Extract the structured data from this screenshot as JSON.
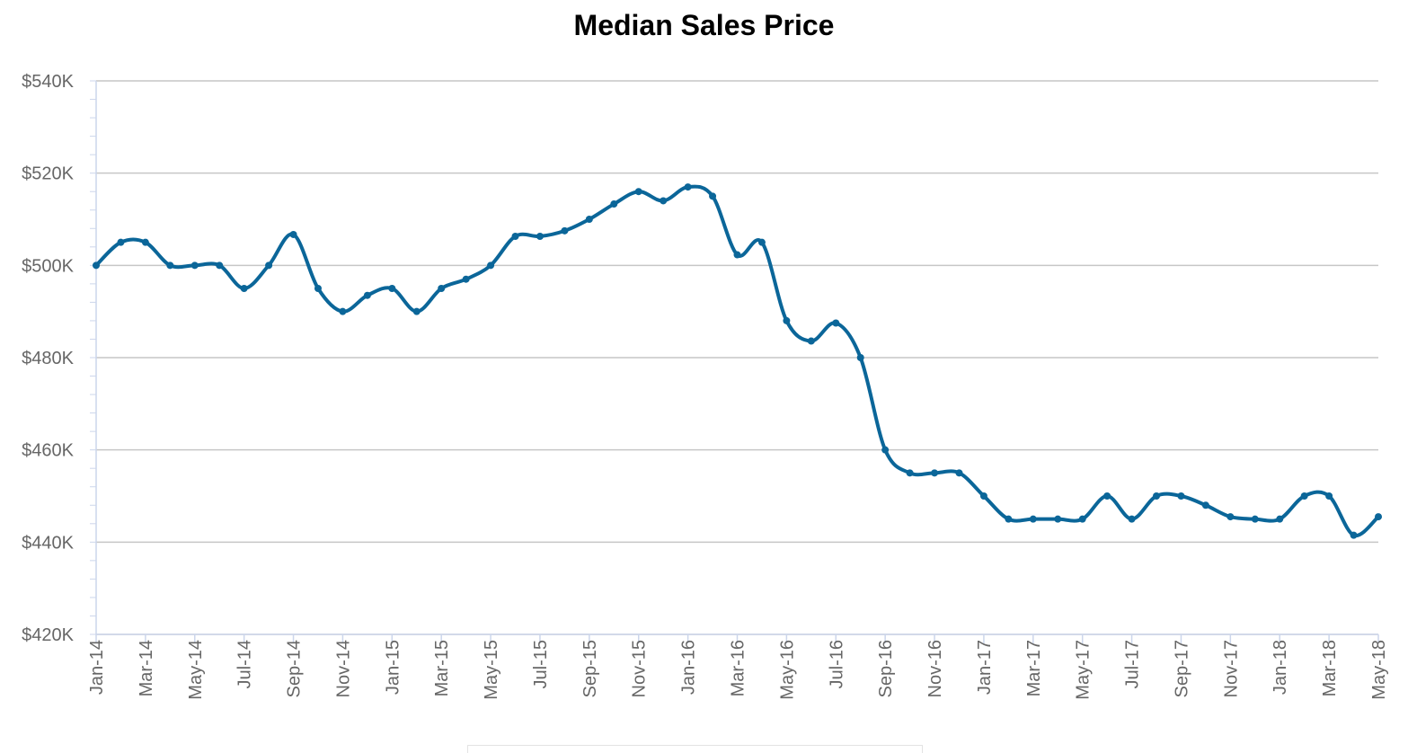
{
  "chart_data": {
    "type": "line",
    "title": "Median Sales Price",
    "xlabel": "",
    "ylabel": "",
    "ylim": [
      420000,
      540000
    ],
    "y_ticks": [
      420000,
      440000,
      460000,
      480000,
      500000,
      520000,
      540000
    ],
    "y_tick_labels": [
      "$420K",
      "$440K",
      "$460K",
      "$480K",
      "$500K",
      "$520K",
      "$540K"
    ],
    "x": [
      "Jan-14",
      "Feb-14",
      "Mar-14",
      "Apr-14",
      "May-14",
      "Jun-14",
      "Jul-14",
      "Aug-14",
      "Sep-14",
      "Oct-14",
      "Nov-14",
      "Dec-14",
      "Jan-15",
      "Feb-15",
      "Mar-15",
      "Apr-15",
      "May-15",
      "Jun-15",
      "Jul-15",
      "Aug-15",
      "Sep-15",
      "Oct-15",
      "Nov-15",
      "Dec-15",
      "Jan-16",
      "Feb-16",
      "Mar-16",
      "Apr-16",
      "May-16",
      "Jun-16",
      "Jul-16",
      "Aug-16",
      "Sep-16",
      "Oct-16",
      "Nov-16",
      "Dec-16",
      "Jan-17",
      "Feb-17",
      "Mar-17",
      "Apr-17",
      "May-17",
      "Jun-17",
      "Jul-17",
      "Aug-17",
      "Sep-17",
      "Oct-17",
      "Nov-17",
      "Dec-17",
      "Jan-18",
      "Feb-18",
      "Mar-18",
      "Apr-18",
      "May-18"
    ],
    "x_tick_labels": [
      "Jan-14",
      "Mar-14",
      "May-14",
      "Jul-14",
      "Sep-14",
      "Nov-14",
      "Jan-15",
      "Mar-15",
      "May-15",
      "Jul-15",
      "Sep-15",
      "Nov-15",
      "Jan-16",
      "Mar-16",
      "May-16",
      "Jul-16",
      "Sep-16",
      "Nov-16",
      "Jan-17",
      "Mar-17",
      "May-17",
      "Jul-17",
      "Sep-17",
      "Nov-17",
      "Jan-18",
      "Mar-18",
      "May-18"
    ],
    "series": [
      {
        "color": "#0b6699",
        "values": [
          500000,
          505000,
          505000,
          500000,
          500000,
          500000,
          495000,
          500000,
          506700,
          495000,
          490000,
          493500,
          495000,
          490000,
          495000,
          497000,
          500000,
          506300,
          506300,
          507500,
          510000,
          513300,
          516000,
          514000,
          517000,
          515000,
          502300,
          505000,
          488000,
          483600,
          487500,
          480000,
          460000,
          455000,
          455000,
          455000,
          450000,
          445000,
          445000,
          445000,
          445000,
          450000,
          445000,
          450000,
          450000,
          448000,
          445500,
          445000,
          445000,
          450000,
          450000,
          441500,
          445500
        ]
      }
    ],
    "grid": "horizontal",
    "legend": "none",
    "colors": {
      "line": "#0b6699",
      "grid": "#c6c6c6",
      "axis": "#ccd6eb",
      "tick_text": "#666666"
    }
  }
}
